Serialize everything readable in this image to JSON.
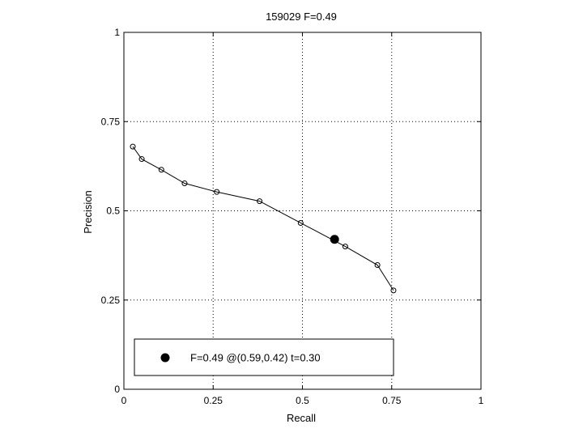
{
  "chart_data": {
    "type": "line",
    "title": "159029 F=0.49",
    "xlabel": "Recall",
    "ylabel": "Precision",
    "xlim": [
      0,
      1
    ],
    "ylim": [
      0,
      1
    ],
    "xticks": [
      0,
      0.25,
      0.5,
      0.75,
      1
    ],
    "yticks": [
      0,
      0.25,
      0.5,
      0.75,
      1
    ],
    "xtick_labels": [
      "0",
      "0.25",
      "0.5",
      "0.75",
      "1"
    ],
    "ytick_labels": [
      "0",
      "0.25",
      "0.5",
      "0.75",
      "1"
    ],
    "grid": true,
    "grid_style": "dotted",
    "series": [
      {
        "x": [
          0.025,
          0.05,
          0.105,
          0.17,
          0.26,
          0.38,
          0.495,
          0.62,
          0.71,
          0.755
        ],
        "y": [
          0.68,
          0.645,
          0.615,
          0.577,
          0.553,
          0.527,
          0.466,
          0.4,
          0.348,
          0.277
        ]
      }
    ],
    "highlight_point": {
      "x": 0.59,
      "y": 0.42
    },
    "legend": {
      "placement": "bottom-left",
      "text": "F=0.49 @(0.59,0.42) t=0.30"
    },
    "colors": {
      "line": "#000000",
      "background": "#ffffff"
    }
  }
}
